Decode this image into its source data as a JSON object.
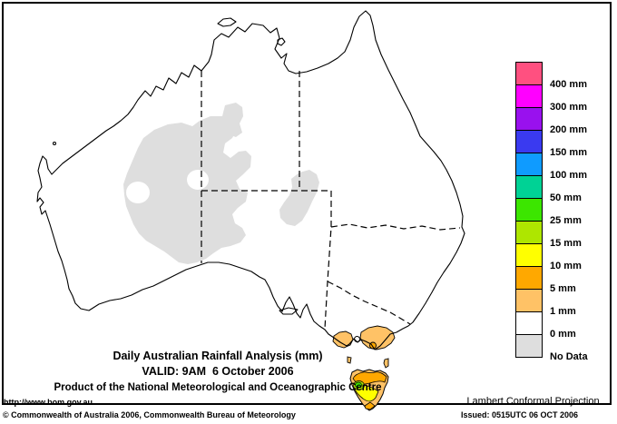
{
  "header": {
    "title": "Daily Australian Rainfall Analysis (mm)",
    "valid": "VALID: 9AM  6 October 2006",
    "product": "Product of the National Meteorological and Oceanographic Centre"
  },
  "footer": {
    "url": "http://www.bom.gov.au",
    "projection": "Lambert Conformal Projection",
    "copyright": "© Commonwealth of Australia 2006, Commonwealth Bureau of Meteorology",
    "issued": "Issued: 0515UTC 06 OCT 2006"
  },
  "legend": {
    "entries": [
      {
        "label": "400 mm",
        "color": "#FF5080"
      },
      {
        "label": "300 mm",
        "color": "#FF00FF"
      },
      {
        "label": "200 mm",
        "color": "#9911EE"
      },
      {
        "label": "150 mm",
        "color": "#3A3AF0"
      },
      {
        "label": "100 mm",
        "color": "#0F9BFF"
      },
      {
        "label": "50 mm",
        "color": "#00D295"
      },
      {
        "label": "25 mm",
        "color": "#3CE600"
      },
      {
        "label": "15 mm",
        "color": "#AEE600"
      },
      {
        "label": "10 mm",
        "color": "#FFFF00"
      },
      {
        "label": "5 mm",
        "color": "#FFA800"
      },
      {
        "label": "1 mm",
        "color": "#FFC266"
      },
      {
        "label": "0 mm",
        "color": "#FFFFFF"
      },
      {
        "label": "No Data",
        "color": "#DEDEDE"
      }
    ]
  },
  "map": {
    "colors": {
      "no-data": "#DEDEDE",
      "rain-1mm": "#FFC266",
      "rain-5mm": "#FFA800",
      "rain-10mm": "#FFFF00",
      "rain-15mm": "#AEE600",
      "rain-25mm": "#3CE600"
    },
    "regions": {
      "no_data": [
        "central Western Australia / NT interior",
        "central Northern Territory",
        "NT-SA-QLD corner"
      ],
      "rainfall": [
        "southern Victoria coast (1-5 mm)",
        "Tasmania (1-25 mm)"
      ]
    }
  }
}
